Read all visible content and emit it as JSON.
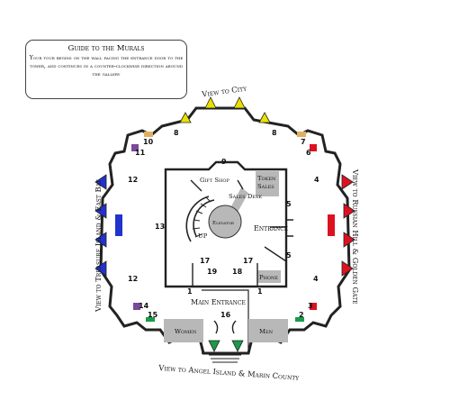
{
  "guide": {
    "title": "Guide to the Murals",
    "body": "Your tour begins on the wall facing the entrance door to the tower, and continues in a counter-clockwise direction around the gallery"
  },
  "views": {
    "top": "View to City",
    "left": "View to Treasure Island & East Bay",
    "right": "View to Russian Hill & Golden Gate",
    "bottom": "View to Angel Island & Marin County"
  },
  "rooms": {
    "gift_shop": "Gift Shop",
    "sales_desk": "Sales Desk",
    "elevator": "Elevator",
    "token": "Token",
    "sales": "Sales",
    "entrance": "Entrance",
    "up": "UP",
    "phone": "Phone",
    "main_entrance": "Main Entrance",
    "women": "Women",
    "men": "Men"
  },
  "mural_numbers": {
    "n1a": "1",
    "n1b": "1",
    "n2": "2",
    "n3": "3",
    "n4a": "4",
    "n4b": "4",
    "n5a": "5",
    "n5b": "5",
    "n6": "6",
    "n7": "7",
    "n8a": "8",
    "n8b": "8",
    "n9": "9",
    "n10": "10",
    "n11": "11",
    "n12a": "12",
    "n12b": "12",
    "n13": "13",
    "n14": "14",
    "n15": "15",
    "n16": "16",
    "n17a": "17",
    "n17b": "17",
    "n18": "18",
    "n19": "19"
  },
  "colors": {
    "yellow": "#e8e000",
    "red": "#dd1122",
    "blue": "#2233cc",
    "green": "#1a9a4a",
    "purple": "#7a4a9a",
    "tan": "#e0b060",
    "gray": "#b8b8b8"
  }
}
